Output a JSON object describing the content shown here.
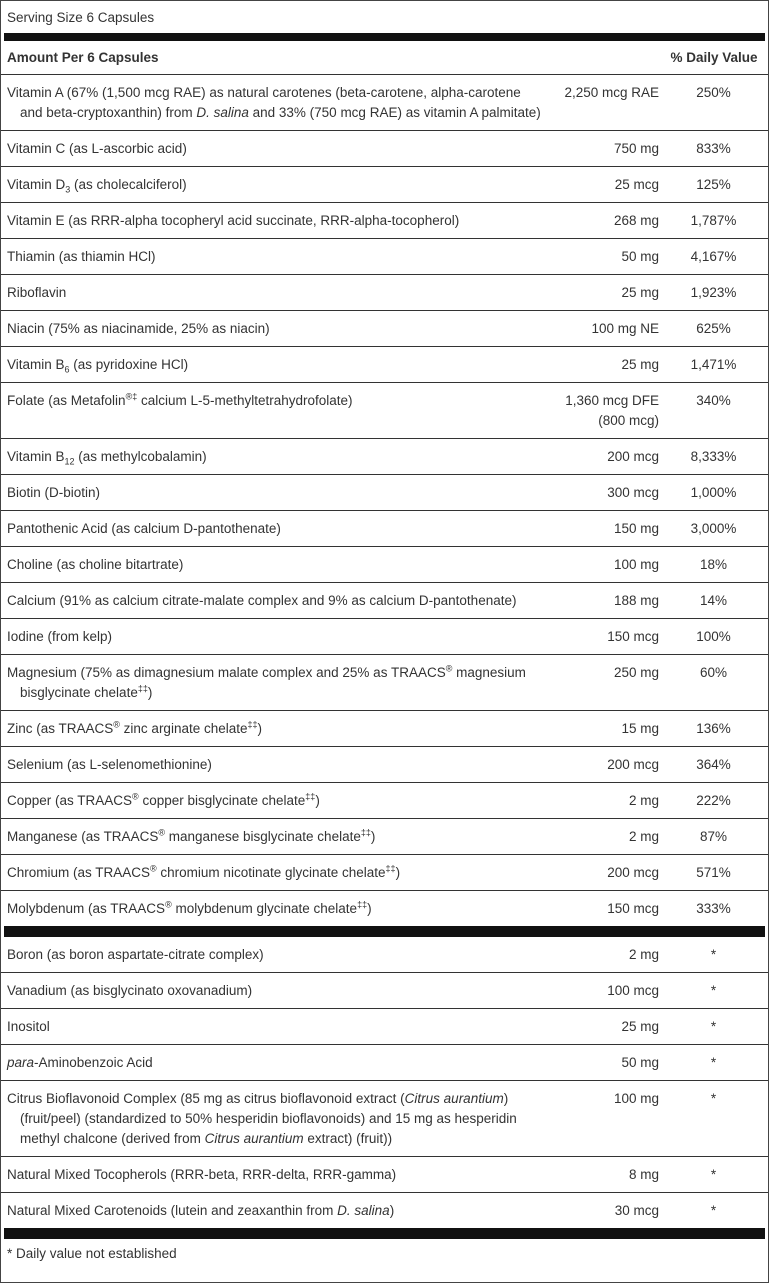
{
  "serving_size": "Serving Size 6 Capsules",
  "header": {
    "amount": "Amount Per 6 Capsules",
    "daily_value": "% Daily Value"
  },
  "sections": [
    {
      "rows": [
        {
          "name": [
            "Vitamin A (67% (1,500 mcg RAE) as natural carotenes (beta-carotene, alpha-carotene and beta-cryptoxanthin) from ",
            {
              "text": "D. salina",
              "style": "i"
            },
            " and 33% (750 mcg RAE) as vitamin A palmitate)"
          ],
          "amount": "2,250 mcg RAE",
          "daily_value": "250%"
        },
        {
          "name": [
            "Vitamin C (as L-ascorbic acid)"
          ],
          "amount": "750 mg",
          "daily_value": "833%"
        },
        {
          "name": [
            "Vitamin D",
            {
              "text": "3",
              "style": "sub"
            },
            " (as cholecalciferol)"
          ],
          "amount": "25 mcg",
          "daily_value": "125%"
        },
        {
          "name": [
            "Vitamin E (as RRR-alpha tocopheryl acid succinate, RRR-alpha-tocopherol)"
          ],
          "amount": "268 mg",
          "daily_value": "1,787%"
        },
        {
          "name": [
            "Thiamin (as thiamin HCl)"
          ],
          "amount": "50 mg",
          "daily_value": "4,167%"
        },
        {
          "name": [
            "Riboflavin"
          ],
          "amount": "25 mg",
          "daily_value": "1,923%"
        },
        {
          "name": [
            "Niacin (75% as niacinamide, 25% as niacin)"
          ],
          "amount": "100 mg NE",
          "daily_value": "625%"
        },
        {
          "name": [
            "Vitamin B",
            {
              "text": "6",
              "style": "sub"
            },
            " (as pyridoxine HCl)"
          ],
          "amount": "25 mg",
          "daily_value": "1,471%"
        },
        {
          "name": [
            "Folate (as Metafolin",
            {
              "text": "®‡",
              "style": "sup"
            },
            " calcium L-5-methyltetrahydrofolate)"
          ],
          "amount": [
            "1,360 mcg DFE",
            "(800 mcg)"
          ],
          "daily_value": "340%"
        },
        {
          "name": [
            "Vitamin B",
            {
              "text": "12",
              "style": "sub"
            },
            " (as methylcobalamin)"
          ],
          "amount": "200 mcg",
          "daily_value": "8,333%"
        },
        {
          "name": [
            "Biotin (D-biotin)"
          ],
          "amount": "300 mcg",
          "daily_value": "1,000%"
        },
        {
          "name": [
            "Pantothenic Acid (as calcium D-pantothenate)"
          ],
          "amount": "150 mg",
          "daily_value": "3,000%"
        },
        {
          "name": [
            "Choline (as choline bitartrate)"
          ],
          "amount": "100 mg",
          "daily_value": "18%"
        },
        {
          "name": [
            "Calcium (91% as calcium citrate-malate complex and 9% as calcium D-pantothenate)"
          ],
          "amount": "188 mg",
          "daily_value": "14%"
        },
        {
          "name": [
            "Iodine (from kelp)"
          ],
          "amount": "150 mcg",
          "daily_value": "100%"
        },
        {
          "name": [
            "Magnesium (75% as dimagnesium malate complex and 25% as TRAACS",
            {
              "text": "®",
              "style": "sup"
            },
            " magnesium bisglycinate chelate",
            {
              "text": "‡‡",
              "style": "sup"
            },
            ")"
          ],
          "amount": "250 mg",
          "daily_value": "60%"
        },
        {
          "name": [
            "Zinc (as TRAACS",
            {
              "text": "®",
              "style": "sup"
            },
            " zinc arginate chelate",
            {
              "text": "‡‡",
              "style": "sup"
            },
            ")"
          ],
          "amount": "15 mg",
          "daily_value": "136%"
        },
        {
          "name": [
            "Selenium (as L-selenomethionine)"
          ],
          "amount": "200 mcg",
          "daily_value": "364%"
        },
        {
          "name": [
            "Copper (as TRAACS",
            {
              "text": "®",
              "style": "sup"
            },
            " copper bisglycinate chelate",
            {
              "text": "‡‡",
              "style": "sup"
            },
            ")"
          ],
          "amount": "2 mg",
          "daily_value": "222%"
        },
        {
          "name": [
            "Manganese (as TRAACS",
            {
              "text": "®",
              "style": "sup"
            },
            " manganese bisglycinate chelate",
            {
              "text": "‡‡",
              "style": "sup"
            },
            ")"
          ],
          "amount": "2 mg",
          "daily_value": "87%"
        },
        {
          "name": [
            "Chromium (as TRAACS",
            {
              "text": "®",
              "style": "sup"
            },
            " chromium nicotinate glycinate chelate",
            {
              "text": "‡‡",
              "style": "sup"
            },
            ")"
          ],
          "amount": "200 mcg",
          "daily_value": "571%"
        },
        {
          "name": [
            "Molybdenum (as TRAACS",
            {
              "text": "®",
              "style": "sup"
            },
            " molybdenum glycinate chelate",
            {
              "text": "‡‡",
              "style": "sup"
            },
            ")"
          ],
          "amount": "150 mcg",
          "daily_value": "333%"
        }
      ]
    },
    {
      "rows": [
        {
          "name": [
            "Boron (as boron aspartate-citrate complex)"
          ],
          "amount": "2 mg",
          "daily_value": "*"
        },
        {
          "name": [
            "Vanadium (as bisglycinato oxovanadium)"
          ],
          "amount": "100 mcg",
          "daily_value": "*"
        },
        {
          "name": [
            "Inositol"
          ],
          "amount": "25 mg",
          "daily_value": "*"
        },
        {
          "name": [
            {
              "text": "para",
              "style": "i"
            },
            "-Aminobenzoic Acid"
          ],
          "amount": "50 mg",
          "daily_value": "*"
        },
        {
          "name": [
            "Citrus Bioflavonoid Complex (85 mg as citrus bioflavonoid extract (",
            {
              "text": "Citrus aurantium",
              "style": "i"
            },
            ") (fruit/peel) (standardized to 50% hesperidin bioflavonoids) and 15 mg as hesperidin methyl chalcone (derived from ",
            {
              "text": "Citrus aurantium",
              "style": "i"
            },
            " extract) (fruit))"
          ],
          "amount": "100 mg",
          "daily_value": "*"
        },
        {
          "name": [
            "Natural Mixed Tocopherols (RRR-beta, RRR-delta, RRR-gamma)"
          ],
          "amount": "8 mg",
          "daily_value": "*"
        },
        {
          "name": [
            "Natural Mixed Carotenoids (lutein and zeaxanthin from ",
            {
              "text": "D. salina",
              "style": "i"
            },
            ")"
          ],
          "amount": "30 mcg",
          "daily_value": "*"
        }
      ]
    }
  ],
  "footnote": "* Daily value not established"
}
